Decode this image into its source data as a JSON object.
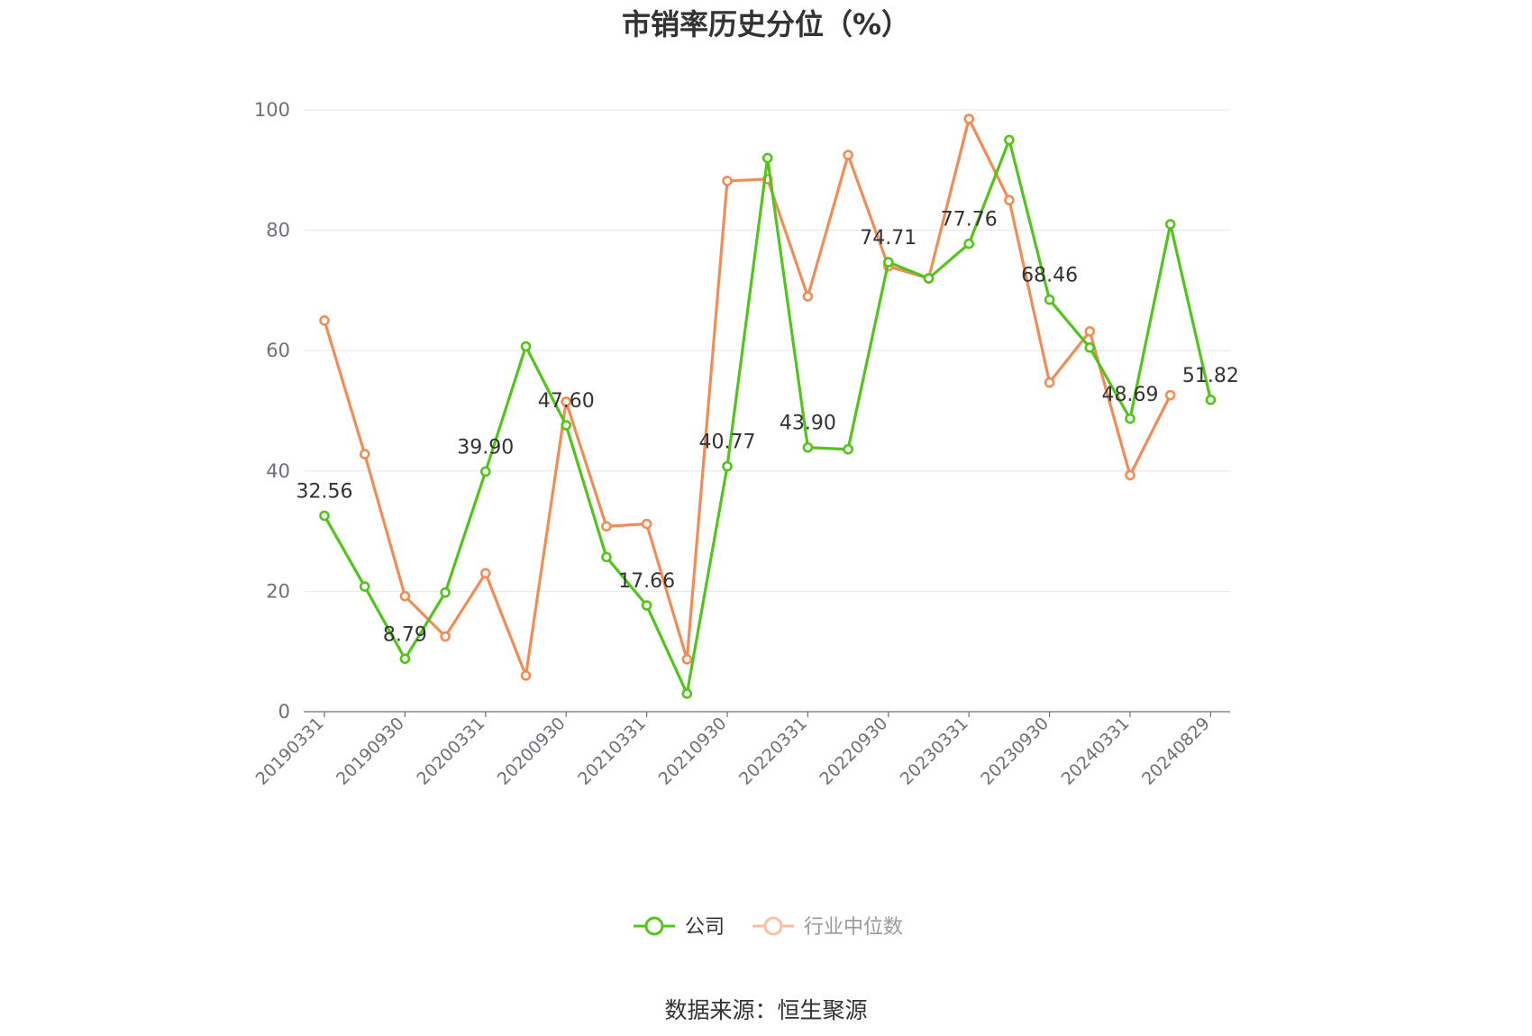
{
  "chart_data": {
    "type": "line",
    "title": "市销率历史分位（%）",
    "source": "数据来源：恒生聚源",
    "ylim": [
      0,
      100
    ],
    "y_ticks": [
      0,
      20,
      40,
      60,
      80,
      100
    ],
    "x_tick_labels": [
      "20190331",
      "20190930",
      "20200331",
      "20200930",
      "20210331",
      "20210930",
      "20220331",
      "20220930",
      "20230331",
      "20230930",
      "20240331",
      "20240829"
    ],
    "categories": [
      "20190331",
      "20190630",
      "20190930",
      "20191231",
      "20200331",
      "20200630",
      "20200930",
      "20201231",
      "20210331",
      "20210630",
      "20210930",
      "20211231",
      "20220331",
      "20220630",
      "20220930",
      "20221231",
      "20230331",
      "20230630",
      "20230930",
      "20231231",
      "20240331",
      "20240630",
      "20240829"
    ],
    "grid": true,
    "legend_position": "bottom",
    "series": [
      {
        "name": "公司",
        "color": "#52c41a",
        "values": [
          32.56,
          20.8,
          8.79,
          19.8,
          39.9,
          60.7,
          47.6,
          25.7,
          17.66,
          3.0,
          40.77,
          92.0,
          43.9,
          43.6,
          74.71,
          72.0,
          77.76,
          95.0,
          68.46,
          60.5,
          48.69,
          81.0,
          51.82
        ],
        "labels": [
          "32.56",
          "",
          "8.79",
          "",
          "39.90",
          "",
          "47.60",
          "",
          "17.66",
          "",
          "40.77",
          "",
          "43.90",
          "",
          "74.71",
          "",
          "77.76",
          "",
          "68.46",
          "",
          "48.69",
          "",
          "51.82"
        ]
      },
      {
        "name": "行业中位数",
        "color": "#f28c56",
        "values": [
          65.0,
          42.8,
          19.2,
          12.5,
          23.0,
          6.0,
          51.5,
          30.8,
          31.2,
          8.7,
          88.2,
          88.5,
          69.0,
          92.5,
          74.0,
          72.0,
          98.5,
          85.0,
          54.7,
          63.2,
          39.3,
          52.6,
          null
        ]
      }
    ]
  }
}
